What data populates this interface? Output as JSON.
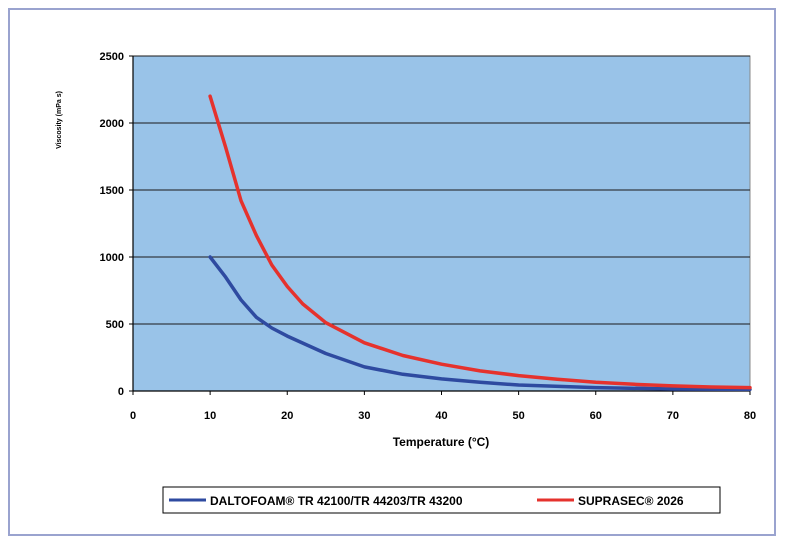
{
  "chart_data": {
    "type": "line",
    "xlabel": "Temperature (°C)",
    "ylabel": "Viscosity  (mPa s)",
    "xlim": [
      0,
      80
    ],
    "ylim": [
      0,
      2500
    ],
    "x_ticks": [
      "0",
      "10",
      "20",
      "30",
      "40",
      "50",
      "60",
      "70",
      "80"
    ],
    "y_ticks": [
      "0",
      "500",
      "1000",
      "1500",
      "2000",
      "2500"
    ],
    "grid": true,
    "legend_position": "bottom",
    "plot_background": "#99c3e8",
    "series": [
      {
        "name": "DALTOFOAM® TR 42100/TR 44203/TR 43200",
        "color": "#2e4aa0",
        "x": [
          10,
          12,
          14,
          16,
          18,
          20,
          25,
          30,
          35,
          40,
          45,
          50,
          60,
          70,
          80
        ],
        "y": [
          1000,
          850,
          680,
          550,
          470,
          410,
          280,
          180,
          125,
          90,
          65,
          45,
          25,
          15,
          12
        ]
      },
      {
        "name": "SUPRASEC® 2026",
        "color": "#e5322d",
        "x": [
          10,
          12,
          14,
          16,
          18,
          20,
          22,
          25,
          30,
          35,
          40,
          45,
          50,
          55,
          60,
          65,
          70,
          75,
          80
        ],
        "y": [
          2200,
          1820,
          1420,
          1160,
          940,
          780,
          650,
          510,
          360,
          265,
          200,
          150,
          115,
          88,
          65,
          50,
          38,
          30,
          25
        ]
      }
    ]
  }
}
